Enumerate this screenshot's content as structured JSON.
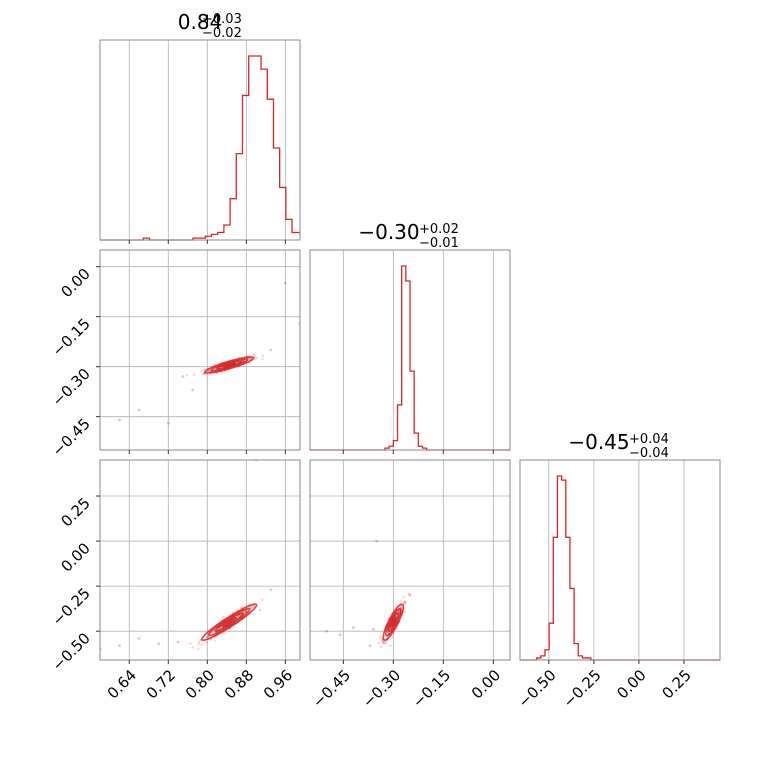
{
  "colors": {
    "series": "#d62728",
    "grid": "#b0b0b0",
    "frame": "#888888"
  },
  "chart_data": {
    "type": "corner",
    "grid": true,
    "parameters": [
      {
        "title_value": "0.84",
        "title_upper": "+0.03",
        "title_lower": "−0.02",
        "range": [
          0.58,
          0.99
        ]
      },
      {
        "title_value": "−0.30",
        "title_upper": "+0.02",
        "title_lower": "−0.01",
        "range": [
          -0.55,
          0.05
        ]
      },
      {
        "title_value": "−0.45",
        "title_upper": "+0.04",
        "title_lower": "−0.04",
        "range": [
          -0.66,
          0.45
        ]
      }
    ],
    "ticks": {
      "p0": [
        0.64,
        0.72,
        0.8,
        0.88,
        0.96
      ],
      "p1": [
        -0.45,
        -0.3,
        -0.15,
        0.0
      ],
      "p2": [
        -0.5,
        -0.25,
        0.0,
        0.25
      ]
    },
    "y_ticks": {
      "row1": [
        0.0,
        -0.15,
        -0.3,
        -0.45
      ],
      "row2": [
        0.25,
        0.0,
        -0.25,
        -0.5
      ]
    },
    "tick_labels": {
      "p0": [
        "0.64",
        "0.72",
        "0.80",
        "0.88",
        "0.96"
      ],
      "p1": [
        "−0.45",
        "−0.30",
        "−0.15",
        "0.00"
      ],
      "p2": [
        "−0.50",
        "−0.25",
        "0.00",
        "0.25"
      ],
      "row1": [
        "0.00",
        "−0.15",
        "−0.30",
        "−0.45"
      ],
      "row2": [
        "0.25",
        "0.00",
        "−0.25",
        "−0.50"
      ]
    },
    "histograms": [
      {
        "param": 0,
        "edges": [
          0.58,
          0.5927,
          0.6054,
          0.6181,
          0.6308,
          0.6435,
          0.6562,
          0.6689,
          0.6816,
          0.6943,
          0.707,
          0.7197,
          0.7324,
          0.7451,
          0.7578,
          0.7705,
          0.7832,
          0.7959,
          0.8086,
          0.8213,
          0.834,
          0.8467,
          0.8594,
          0.8721,
          0.8848,
          0.8975,
          0.9102,
          0.9229,
          0.9356,
          0.9483,
          0.961,
          0.9737,
          0.99
        ],
        "counts": [
          0,
          0,
          0,
          0,
          0,
          0,
          0,
          1,
          0,
          0,
          0,
          0,
          0,
          0,
          0,
          1,
          1,
          2,
          3,
          4,
          8,
          22,
          46,
          77,
          98,
          98,
          91,
          75,
          49,
          28,
          11,
          4
        ]
      },
      {
        "param": 1,
        "edges": [
          -0.55,
          -0.5375,
          -0.525,
          -0.5125,
          -0.5,
          -0.4875,
          -0.475,
          -0.4625,
          -0.45,
          -0.4375,
          -0.425,
          -0.4125,
          -0.4,
          -0.3875,
          -0.375,
          -0.3625,
          -0.35,
          -0.3375,
          -0.325,
          -0.3125,
          -0.3,
          -0.2875,
          -0.275,
          -0.2625,
          -0.25,
          -0.2375,
          -0.225,
          -0.2125,
          -0.2,
          -0.1875,
          -0.175,
          -0.1625,
          -0.15,
          -0.1375,
          -0.125,
          -0.1125,
          -0.1,
          -0.0875,
          -0.075,
          -0.0625,
          -0.05,
          -0.0375,
          -0.025,
          -0.0125,
          0.0,
          0.0125,
          0.025,
          0.0375,
          0.05
        ],
        "counts": [
          0,
          0,
          0,
          0,
          0,
          0,
          0,
          0,
          0,
          0,
          0,
          0,
          0,
          0,
          0,
          0,
          0,
          0,
          1,
          2,
          5,
          24,
          98,
          90,
          42,
          9,
          2,
          1,
          0,
          0,
          0,
          0,
          0,
          0,
          0,
          0,
          0,
          0,
          0,
          0,
          0,
          0,
          0,
          0,
          0,
          0,
          0,
          0
        ]
      },
      {
        "param": 2,
        "edges": [
          -0.66,
          -0.6369,
          -0.6138,
          -0.5907,
          -0.5676,
          -0.5445,
          -0.5214,
          -0.4983,
          -0.4752,
          -0.4521,
          -0.429,
          -0.4059,
          -0.3828,
          -0.3597,
          -0.3366,
          -0.3135,
          -0.2904,
          -0.2673,
          -0.2442,
          -0.2211,
          -0.198,
          -0.1749,
          -0.1518,
          -0.1287,
          -0.1056,
          -0.0825,
          -0.0594,
          -0.0363,
          -0.0132,
          0.0099,
          0.033,
          0.0561,
          0.0792,
          0.1023,
          0.1254,
          0.1485,
          0.1716,
          0.1947,
          0.2178,
          0.2409,
          0.264,
          0.2871,
          0.3102,
          0.3333,
          0.3564,
          0.3795,
          0.4026,
          0.4257,
          0.45
        ],
        "counts": [
          0,
          0,
          0,
          0,
          1,
          2,
          5,
          18,
          60,
          90,
          88,
          60,
          35,
          8,
          2,
          1,
          1,
          0,
          0,
          0,
          0,
          0,
          0,
          0,
          0,
          0,
          0,
          0,
          0,
          0,
          0,
          0,
          0,
          0,
          0,
          0,
          0,
          0,
          0,
          0,
          0,
          0,
          0,
          0,
          0,
          0,
          0,
          0
        ]
      }
    ],
    "scatter_panels": [
      {
        "x_param": 0,
        "y_param": 1,
        "clusters": [
          {
            "cx": 0.845,
            "cy": -0.295,
            "sx": 0.025,
            "sy": 0.012,
            "rho": 0.88
          }
        ],
        "outliers": [
          [
            0.66,
            -0.43
          ],
          [
            0.62,
            -0.46
          ],
          [
            0.72,
            -0.47
          ],
          [
            0.75,
            -0.33
          ],
          [
            0.93,
            -0.25
          ],
          [
            0.99,
            -0.17
          ],
          [
            0.77,
            -0.37
          ],
          [
            0.96,
            -0.05
          ]
        ]
      },
      {
        "x_param": 0,
        "y_param": 2,
        "clusters": [
          {
            "cx": 0.845,
            "cy": -0.45,
            "sx": 0.028,
            "sy": 0.05,
            "rho": 0.95
          }
        ],
        "outliers": [
          [
            0.58,
            -0.6
          ],
          [
            0.62,
            -0.58
          ],
          [
            0.66,
            -0.54
          ],
          [
            0.7,
            -0.57
          ],
          [
            0.93,
            -0.27
          ],
          [
            0.9,
            0.45
          ],
          [
            0.74,
            -0.56
          ]
        ]
      },
      {
        "x_param": 1,
        "y_param": 2,
        "clusters": [
          {
            "cx": -0.3,
            "cy": -0.45,
            "sx": 0.015,
            "sy": 0.05,
            "rho": 0.85
          }
        ],
        "outliers": [
          [
            -0.5,
            -0.5
          ],
          [
            -0.46,
            -0.52
          ],
          [
            -0.42,
            -0.48
          ],
          [
            -0.36,
            -0.49
          ],
          [
            -0.25,
            -0.3
          ],
          [
            -0.33,
            -0.56
          ],
          [
            -0.37,
            -0.58
          ],
          [
            -0.35,
            0.0
          ]
        ]
      }
    ]
  }
}
